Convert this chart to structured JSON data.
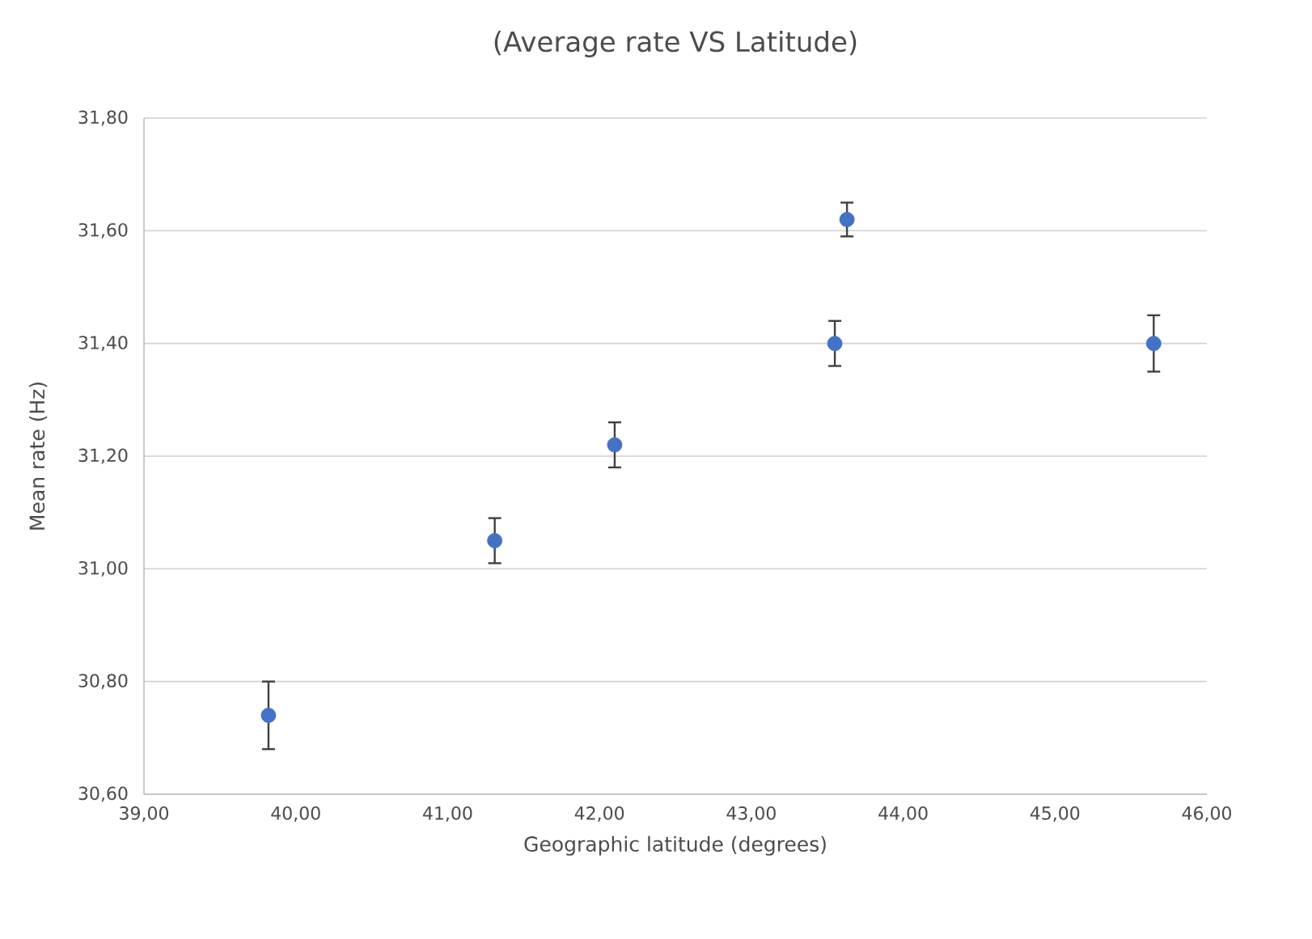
{
  "chart_data": {
    "type": "scatter",
    "title": "(Average rate VS Latitude)",
    "xlabel": "Geographic latitude (degrees)",
    "ylabel": "Mean rate (Hz)",
    "x": [
      39.82,
      41.31,
      42.1,
      43.55,
      43.63,
      45.65
    ],
    "values": [
      30.74,
      31.05,
      31.22,
      31.4,
      31.62,
      31.4
    ],
    "errors": [
      0.06,
      0.04,
      0.04,
      0.04,
      0.03,
      0.05
    ],
    "color": "#4472c4",
    "grid": "y",
    "xlim": [
      39,
      46
    ],
    "xticks": [
      {
        "value": 39,
        "label": "39,00"
      },
      {
        "value": 40,
        "label": "40,00"
      },
      {
        "value": 41,
        "label": "41,00"
      },
      {
        "value": 42,
        "label": "42,00"
      },
      {
        "value": 43,
        "label": "43,00"
      },
      {
        "value": 44,
        "label": "44,00"
      },
      {
        "value": 45,
        "label": "45,00"
      },
      {
        "value": 46,
        "label": "46,00"
      }
    ],
    "ylim": [
      30.6,
      31.8
    ],
    "yticks": [
      {
        "value": 30.6,
        "label": "30,60"
      },
      {
        "value": 30.8,
        "label": "30,80"
      },
      {
        "value": 31.0,
        "label": "31,00"
      },
      {
        "value": 31.2,
        "label": "31,20"
      },
      {
        "value": 31.4,
        "label": "31,40"
      },
      {
        "value": 31.6,
        "label": "31,60"
      },
      {
        "value": 31.8,
        "label": "31,80"
      }
    ]
  }
}
